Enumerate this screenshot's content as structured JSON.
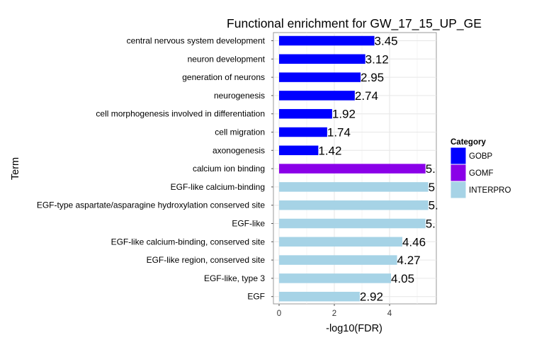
{
  "chart_data": {
    "type": "bar",
    "orientation": "horizontal",
    "title": "Functional enrichment for GW_17_15_UP_GE",
    "xlabel": "-log10(FDR)",
    "ylabel": "Term",
    "xlim": [
      -0.25,
      5.55
    ],
    "xticks": [
      0,
      2,
      4
    ],
    "grid": true,
    "legend": {
      "title": "Category",
      "position": "right",
      "entries": [
        {
          "name": "GOBP",
          "color": "#0000ff"
        },
        {
          "name": "GOMF",
          "color": "#8a00e8"
        },
        {
          "name": "INTERPRO",
          "color": "#a6d3e6"
        }
      ]
    },
    "bars": [
      {
        "term": "central nervous system development",
        "value": 3.45,
        "label": "3.45",
        "category": "GOBP"
      },
      {
        "term": "neuron development",
        "value": 3.12,
        "label": "3.12",
        "category": "GOBP"
      },
      {
        "term": "generation of neurons",
        "value": 2.95,
        "label": "2.95",
        "category": "GOBP"
      },
      {
        "term": "neurogenesis",
        "value": 2.74,
        "label": "2.74",
        "category": "GOBP"
      },
      {
        "term": "cell morphogenesis involved in differentiation",
        "value": 1.92,
        "label": "1.92",
        "category": "GOBP"
      },
      {
        "term": "cell migration",
        "value": 1.74,
        "label": "1.74",
        "category": "GOBP"
      },
      {
        "term": "axonogenesis",
        "value": 1.42,
        "label": "1.42",
        "category": "GOBP"
      },
      {
        "term": "calcium ion binding",
        "value": 5.3,
        "label": "5.",
        "category": "GOMF"
      },
      {
        "term": "EGF-like calcium-binding",
        "value": 5.4,
        "label": "5",
        "category": "INTERPRO"
      },
      {
        "term": "EGF-type aspartate/asparagine hydroxylation conserved site",
        "value": 5.4,
        "label": "5.",
        "category": "INTERPRO"
      },
      {
        "term": "EGF-like",
        "value": 5.3,
        "label": "5.",
        "category": "INTERPRO"
      },
      {
        "term": "EGF-like calcium-binding, conserved site",
        "value": 4.46,
        "label": "4.46",
        "category": "INTERPRO"
      },
      {
        "term": "EGF-like region, conserved site",
        "value": 4.27,
        "label": "4.27",
        "category": "INTERPRO"
      },
      {
        "term": "EGF-like, type 3",
        "value": 4.05,
        "label": "4.05",
        "category": "INTERPRO"
      },
      {
        "term": "EGF",
        "value": 2.92,
        "label": "2.92",
        "category": "INTERPRO"
      }
    ]
  }
}
